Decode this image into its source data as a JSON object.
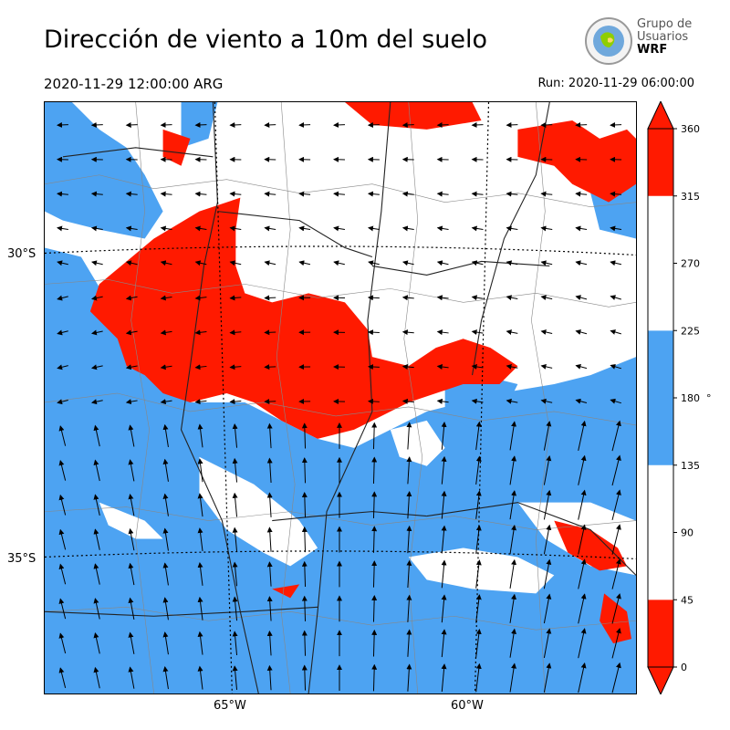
{
  "header": {
    "title": "Dirección de viento a 10m del suelo",
    "valid_time": "2020-11-29 12:00:00 ARG",
    "run_time": "Run: 2020-11-29 06:00:00"
  },
  "logo": {
    "line1": "Grupo de",
    "line2": "Usuarios",
    "line3": "WRF"
  },
  "axes": {
    "lat_labels": [
      "30°S",
      "35°S"
    ],
    "lon_labels": [
      "65°W",
      "60°W"
    ]
  },
  "colorbar": {
    "unit": "°",
    "ticks": [
      "0",
      "45",
      "90",
      "135",
      "180",
      "225",
      "270",
      "315",
      "360"
    ],
    "bins": [
      {
        "from": 0,
        "to": 45,
        "color": "#ff1a00"
      },
      {
        "from": 45,
        "to": 135,
        "color": "#ffffff"
      },
      {
        "from": 135,
        "to": 225,
        "color": "#4da3f2"
      },
      {
        "from": 225,
        "to": 315,
        "color": "#ffffff"
      },
      {
        "from": 315,
        "to": 360,
        "color": "#ff1a00"
      }
    ]
  },
  "colors": {
    "red": "#ff1a00",
    "blue": "#4da3f2",
    "white": "#ffffff"
  }
}
